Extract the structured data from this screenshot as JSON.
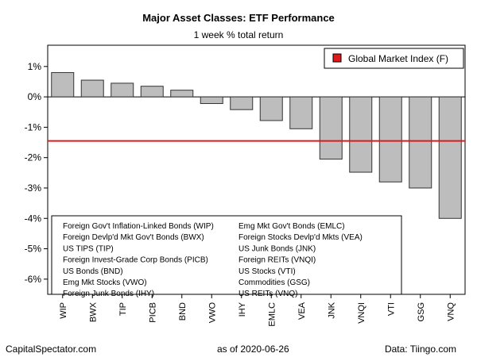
{
  "chart_data": {
    "type": "bar",
    "title": "Major Asset Classes: ETF Performance",
    "subtitle": "1 week % total return",
    "categories": [
      "WIP",
      "BWX",
      "TIP",
      "PICB",
      "BND",
      "VWO",
      "IHY",
      "EMLC",
      "VEA",
      "JNK",
      "VNQI",
      "VTI",
      "GSG",
      "VNQ"
    ],
    "values": [
      0.8,
      0.55,
      0.45,
      0.35,
      0.22,
      -0.22,
      -0.42,
      -0.78,
      -1.05,
      -2.05,
      -2.48,
      -2.8,
      -3.0,
      -4.0
    ],
    "ylim": [
      -6.5,
      1.7
    ],
    "yticks": [
      1,
      0,
      -1,
      -2,
      -3,
      -4,
      -5,
      -6
    ],
    "ytick_labels": [
      "1%",
      "0%",
      "-1%",
      "-2%",
      "-3%",
      "-4%",
      "-5%",
      "-6%"
    ],
    "bar_color": "#bdbdbd",
    "reference_line": {
      "name": "Global Market Index (F)",
      "value": -1.45,
      "color": "#e0191b"
    },
    "legend_position": "top-right",
    "grid": false,
    "key_left": [
      "Foreign Gov't Inflation-Linked Bonds (WIP)",
      "Foreign Devlp'd Mkt Gov't Bonds (BWX)",
      "US TIPS (TIP)",
      "Foreign Invest-Grade Corp Bonds (PICB)",
      "US Bonds (BND)",
      "Emg Mkt Stocks (VWO)",
      "Foreign Junk Bonds (IHY)"
    ],
    "key_right": [
      "Emg Mkt Gov't Bonds (EMLC)",
      "Foreign Stocks Devlp'd Mkts (VEA)",
      "US Junk Bonds (JNK)",
      "Foreign REITs (VNQI)",
      "US Stocks (VTI)",
      "Commodities (GSG)",
      "US REITs (VNQ)"
    ]
  },
  "footer": {
    "left": "CapitalSpectator.com",
    "mid": "as of   2020-06-26",
    "right": "Data: Tiingo.com"
  }
}
